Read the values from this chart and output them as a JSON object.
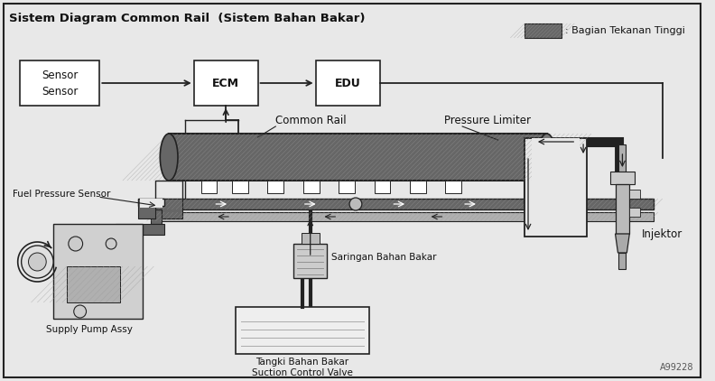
{
  "title": "Sistem Diagram Common Rail  (Sistem Bahan Bakar)",
  "legend_label": ": Bagian Tekanan Tinggi",
  "bg_color": "#e8e8e8",
  "high_pressure_color": "#666666",
  "hp_hatch_color": "#888888",
  "pipe_lp_color": "#b0b0b0",
  "box_color": "#ffffff",
  "line_color": "#222222",
  "labels": {
    "sensor": "Sensor\nSensor",
    "ecm": "ECM",
    "edu": "EDU",
    "common_rail": "Common Rail",
    "pressure_limiter": "Pressure Limiter",
    "fuel_pressure_sensor": "Fuel Pressure Sensor",
    "saringan": "Saringan Bahan Bakar",
    "supply_pump": "Supply Pump Assy",
    "tangki": "Tangki Bahan Bakar",
    "suction": "Suction Control Valve",
    "injektor": "Injektor",
    "code": "A99228"
  },
  "figsize": [
    7.92,
    4.22
  ],
  "dpi": 100
}
